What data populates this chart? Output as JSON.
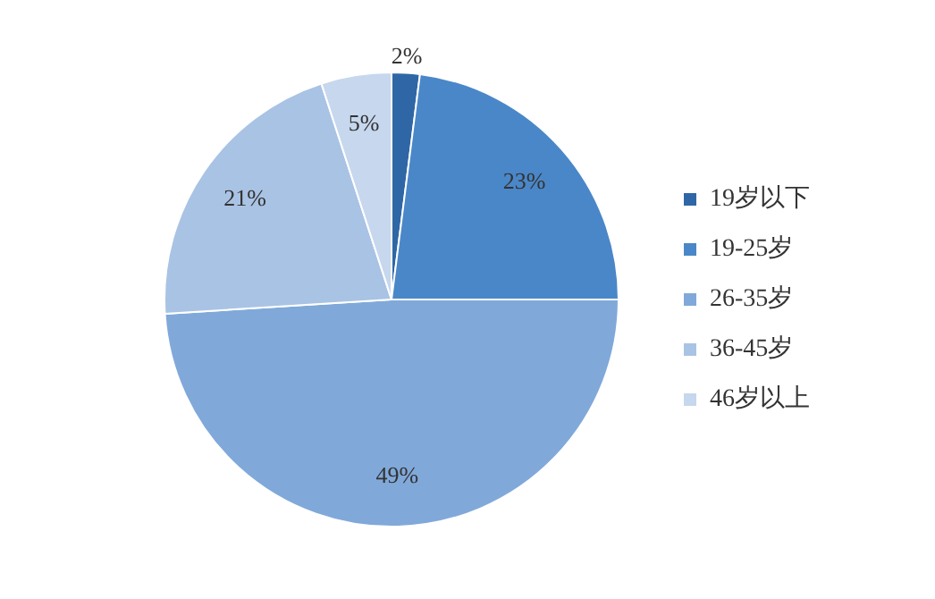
{
  "chart_data": {
    "type": "pie",
    "categories": [
      "19岁以下",
      "19-25岁",
      "26-35岁",
      "36-45岁",
      "46岁以上"
    ],
    "values": [
      2,
      23,
      49,
      21,
      5
    ],
    "value_labels": [
      "2%",
      "23%",
      "49%",
      "21%",
      "5%"
    ],
    "colors": [
      "#2f67a6",
      "#4a87c8",
      "#80a9da",
      "#a9c3e4",
      "#c6d7ee"
    ],
    "legend": "right"
  }
}
